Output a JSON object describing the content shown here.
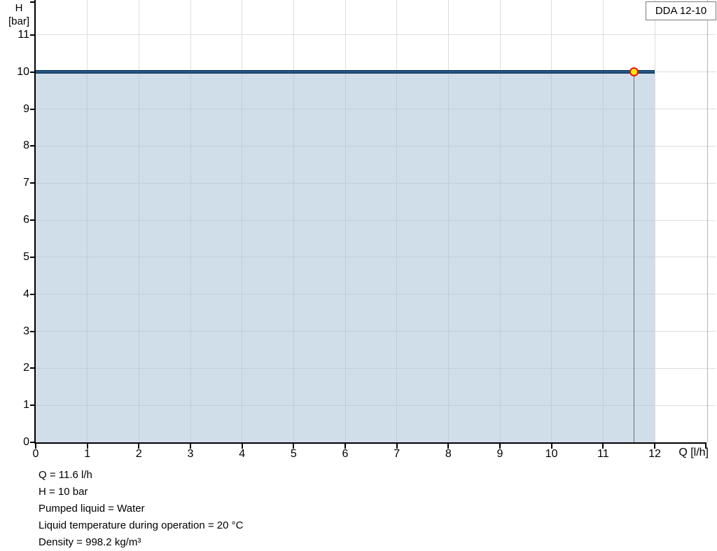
{
  "header": {
    "model_label": "DDA 12-10"
  },
  "chart_data": {
    "type": "line",
    "title": "DDA 12-10",
    "xlabel": "Q [l/h]",
    "ylabel": "H [bar]",
    "ylabel_line1": "H",
    "ylabel_line2": "[bar]",
    "xlim": [
      0,
      12
    ],
    "ylim": [
      0,
      11
    ],
    "x_ticks": [
      0,
      1,
      2,
      3,
      4,
      5,
      6,
      7,
      8,
      9,
      10,
      11,
      12
    ],
    "y_ticks": [
      0,
      1,
      2,
      3,
      4,
      5,
      6,
      7,
      8,
      9,
      10,
      11
    ],
    "grid": true,
    "legend_position": "none",
    "series": [
      {
        "name": "pump-curve",
        "x": [
          0,
          12
        ],
        "y": [
          10,
          10
        ],
        "color_outline": "#0d3052",
        "color_core": "#2f6ba9",
        "area_fill": true,
        "area_color": "#d2dde8"
      }
    ],
    "operating_point": {
      "q": 11.6,
      "h": 10,
      "marker_fill": "#ffe70a",
      "marker_border": "#ee1016",
      "dropline_color": "#66737f"
    },
    "colors": {
      "gridline": "#dcdcdc",
      "axis": "#000000",
      "plot_right_border": "#b3b3b3",
      "background": "#ffffff"
    }
  },
  "footer": {
    "lines": [
      "Q = 11.6 l/h",
      "H = 10 bar",
      "Pumped liquid = Water",
      "Liquid temperature during operation = 20 °C",
      "Density = 998.2 kg/m³"
    ]
  }
}
